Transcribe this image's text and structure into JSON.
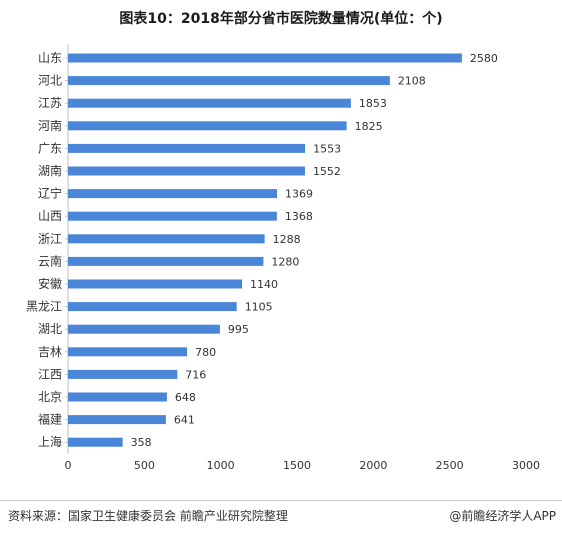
{
  "chart_data": {
    "type": "bar",
    "orientation": "horizontal",
    "title": "图表10：2018年部分省市医院数量情况(单位：个)",
    "categories": [
      "山东",
      "河北",
      "江苏",
      "河南",
      "广东",
      "湖南",
      "辽宁",
      "山西",
      "浙江",
      "云南",
      "安徽",
      "黑龙江",
      "湖北",
      "吉林",
      "江西",
      "北京",
      "福建",
      "上海"
    ],
    "values": [
      2580,
      2108,
      1853,
      1825,
      1553,
      1552,
      1369,
      1368,
      1288,
      1280,
      1140,
      1105,
      995,
      780,
      716,
      648,
      641,
      358
    ],
    "xlim": [
      0,
      3000
    ],
    "xticks": [
      0,
      500,
      1000,
      1500,
      2000,
      2500,
      3000
    ],
    "bar_color": "#4a86d8",
    "grid": false,
    "legend": "none"
  },
  "footer": {
    "source": "资料来源：国家卫生健康委员会 前瞻产业研究院整理",
    "brand": "@前瞻经济学人APP"
  }
}
